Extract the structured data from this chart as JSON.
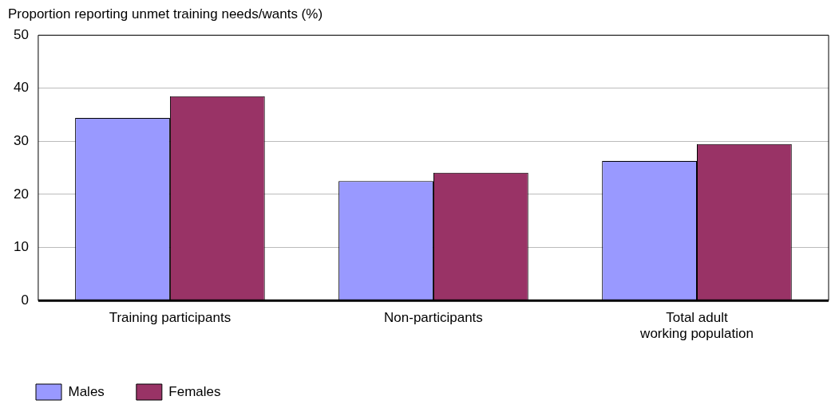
{
  "chart_data": {
    "type": "bar",
    "ylabel": "Proportion reporting unmet training needs/wants (%)",
    "categories": [
      "Training participants",
      "Non-participants",
      "Total adult working population"
    ],
    "series": [
      {
        "name": "Males",
        "color": "#9999ff",
        "values": [
          34.4,
          22.5,
          26.3
        ]
      },
      {
        "name": "Females",
        "color": "#993366",
        "values": [
          38.5,
          24.1,
          29.5
        ]
      }
    ],
    "ylim": [
      0,
      50
    ],
    "yticks": [
      0,
      10,
      20,
      30,
      40,
      50
    ],
    "grid": "y",
    "legend": "bottom left"
  }
}
